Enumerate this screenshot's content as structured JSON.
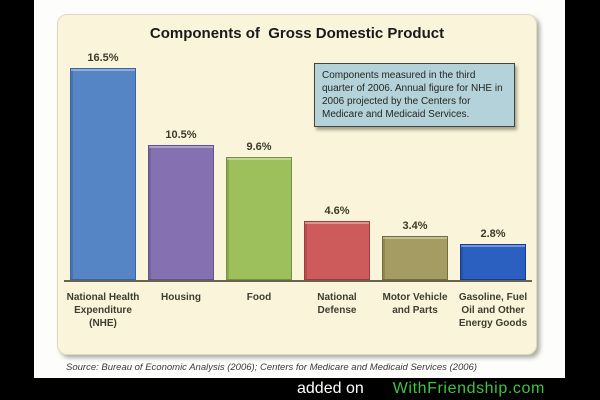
{
  "chart": {
    "title": "Components of  Gross Domestic Product",
    "annotation": "Components measured in the third quarter of 2006. Annual figure for NHE in 2006 projected by the Centers for Medicare and Medicaid Services.",
    "source": "Source:  Bureau of Economic Analysis (2006); Centers for Medicare and Medicaid Services (2006)",
    "panel_background": "#faf5da",
    "annotation_background": "#b4d2da"
  },
  "chart_data": {
    "type": "bar",
    "title": "Components of Gross Domestic Product",
    "categories": [
      "National Health Expenditure (NHE)",
      "Housing",
      "Food",
      "National Defense",
      "Motor Vehicle and Parts",
      "Gasoline, Fuel Oil and Other Energy Goods"
    ],
    "values": [
      16.5,
      10.5,
      9.6,
      4.6,
      3.4,
      2.8
    ],
    "value_labels": [
      "16.5%",
      "10.5%",
      "9.6%",
      "4.6%",
      "3.4%",
      "2.8%"
    ],
    "bar_colors": [
      "#5585c4",
      "#8571b1",
      "#9dc05d",
      "#cd5b5b",
      "#a49c62",
      "#2b5fc0"
    ],
    "bar_border_colors": [
      "#3a63a0",
      "#61518c",
      "#74923e",
      "#a03c3c",
      "#736d3e",
      "#143c92"
    ],
    "xlabel": "",
    "ylabel": "",
    "ylim": [
      0,
      17.6
    ],
    "grid": false,
    "legend": false,
    "annotation": "Components measured in the third quarter of 2006. Annual figure for NHE in 2006 projected by the Centers for Medicare and Medicaid Services.",
    "source": "Source: Bureau of Economic Analysis (2006); Centers for Medicare and Medicaid Services (2006)"
  },
  "watermark": {
    "prefix": "added on",
    "site": "WithFriendship.com",
    "site_color": "#3ec43e"
  }
}
